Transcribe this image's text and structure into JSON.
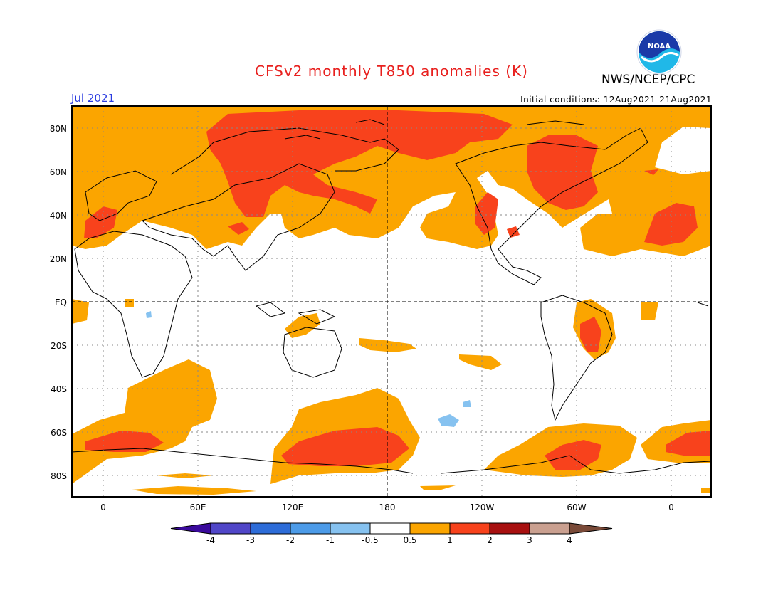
{
  "header": {
    "title": "CFSv2 monthly T850 anomalies (K)",
    "org": "NWS/NCEP/CPC",
    "month": "Jul 2021",
    "initial_conditions": "Initial conditions: 12Aug2021-21Aug2021",
    "logo_text": "NOAA"
  },
  "axes": {
    "lat_labels": [
      "80N",
      "60N",
      "40N",
      "20N",
      "EQ",
      "20S",
      "40S",
      "60S",
      "80S"
    ],
    "lon_labels": [
      "0",
      "60E",
      "120E",
      "180",
      "120W",
      "60W",
      "0"
    ]
  },
  "colorbar": {
    "labels": [
      "-4",
      "-3",
      "-2",
      "-1",
      "-0.5",
      "0.5",
      "1",
      "2",
      "3",
      "4"
    ],
    "colors": [
      "#3a0a9c",
      "#5046c8",
      "#2d6cd8",
      "#4c9be8",
      "#86c2f0",
      "#ffffff",
      "#fba500",
      "#f8421c",
      "#a81010",
      "#caa090",
      "#7a4a38"
    ]
  },
  "palette": {
    "warm1": "#fba500",
    "warm2": "#f8421c",
    "cool1": "#86c2f0",
    "cool2": "#4c9be8"
  }
}
